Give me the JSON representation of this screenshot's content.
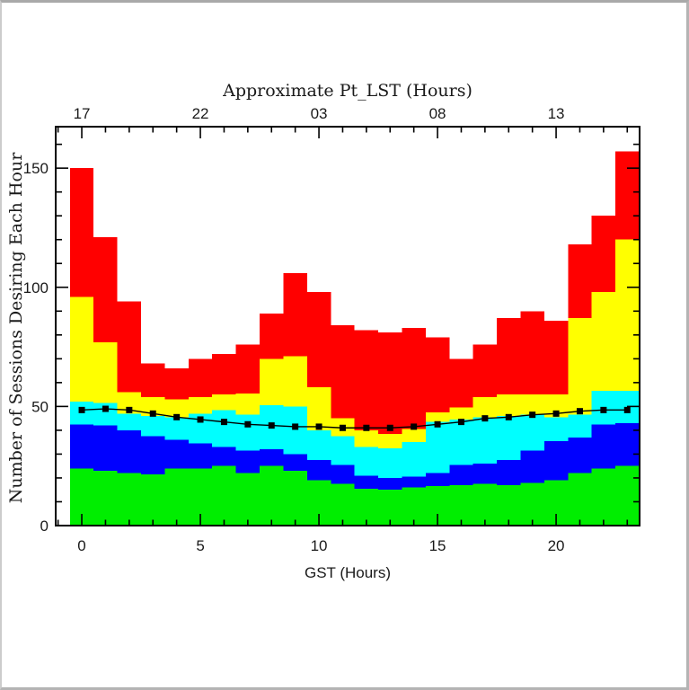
{
  "page": {
    "background": "#ffffff",
    "border_color": "#b4b4b4"
  },
  "chart_data": {
    "type": "bar",
    "subtype": "stacked-histogram-with-line",
    "title_top_axis": "Approximate Pt_LST (Hours)",
    "xlabel": "GST (Hours)",
    "ylabel": "Number of Sessions Desiring Each Hour",
    "x": [
      0,
      1,
      2,
      3,
      4,
      5,
      6,
      7,
      8,
      9,
      10,
      11,
      12,
      13,
      14,
      15,
      16,
      17,
      18,
      19,
      20,
      21,
      22,
      23
    ],
    "xlim": [
      -1.1,
      23.52
    ],
    "ylim": [
      0,
      167.4
    ],
    "x_major_ticks": [
      0,
      5,
      10,
      15,
      20
    ],
    "x_major_labels": [
      "0",
      "5",
      "10",
      "15",
      "20"
    ],
    "top_axis_labels": [
      "17",
      "22",
      "03",
      "08",
      "13"
    ],
    "x_minor_step": 1,
    "y_major_ticks": [
      0,
      50,
      100,
      150
    ],
    "y_major_labels": [
      "0",
      "50",
      "100",
      "150"
    ],
    "y_minor_step": 10,
    "grid": "off",
    "legend": "none",
    "series": [
      {
        "name": "green",
        "color": "#00ee00",
        "cumulative_tops": [
          24,
          23,
          22,
          21.5,
          24,
          24,
          25,
          22,
          25,
          23,
          19,
          17.5,
          15.5,
          15,
          16,
          16.5,
          17,
          17.5,
          17,
          18,
          19,
          22,
          24,
          25
        ]
      },
      {
        "name": "blue",
        "color": "#0000ff",
        "cumulative_tops": [
          42.5,
          42,
          40,
          37.5,
          36,
          34.5,
          33,
          31.5,
          32,
          30,
          27.5,
          25.5,
          21,
          20,
          20.5,
          22,
          25.5,
          26,
          27.5,
          31.5,
          35.5,
          37,
          42.5,
          43
        ]
      },
      {
        "name": "cyan",
        "color": "#00ffff",
        "cumulative_tops": [
          52,
          51.5,
          47,
          46,
          45.5,
          47,
          48.5,
          46.5,
          50.5,
          50,
          40,
          37.5,
          33,
          32.5,
          35,
          43.5,
          44.5,
          45.5,
          46,
          46.5,
          45.5,
          46.5,
          56.5,
          56.5
        ]
      },
      {
        "name": "yellow",
        "color": "#ffff00",
        "cumulative_tops": [
          96,
          77,
          56,
          54,
          53,
          54,
          55,
          55.5,
          70,
          71,
          58,
          45,
          40,
          38.5,
          40.5,
          47.5,
          49.5,
          54,
          55,
          55,
          55,
          87,
          98,
          120
        ]
      },
      {
        "name": "red",
        "color": "#ff0000",
        "cumulative_tops": [
          150,
          121,
          94,
          68,
          66,
          70,
          72,
          76,
          89,
          106,
          98,
          84,
          82,
          81,
          83,
          79,
          70,
          76,
          87,
          90,
          86,
          118,
          130,
          157
        ]
      }
    ],
    "line_series": {
      "name": "black-line",
      "color": "#000000",
      "marker": "square",
      "values": [
        48.5,
        49,
        48.5,
        47,
        45.5,
        44.5,
        43.5,
        42.5,
        42,
        41.5,
        41.5,
        41,
        41,
        41,
        41.5,
        42.5,
        43.5,
        45,
        45.5,
        46.5,
        47,
        48,
        48.5,
        48.5
      ]
    }
  }
}
